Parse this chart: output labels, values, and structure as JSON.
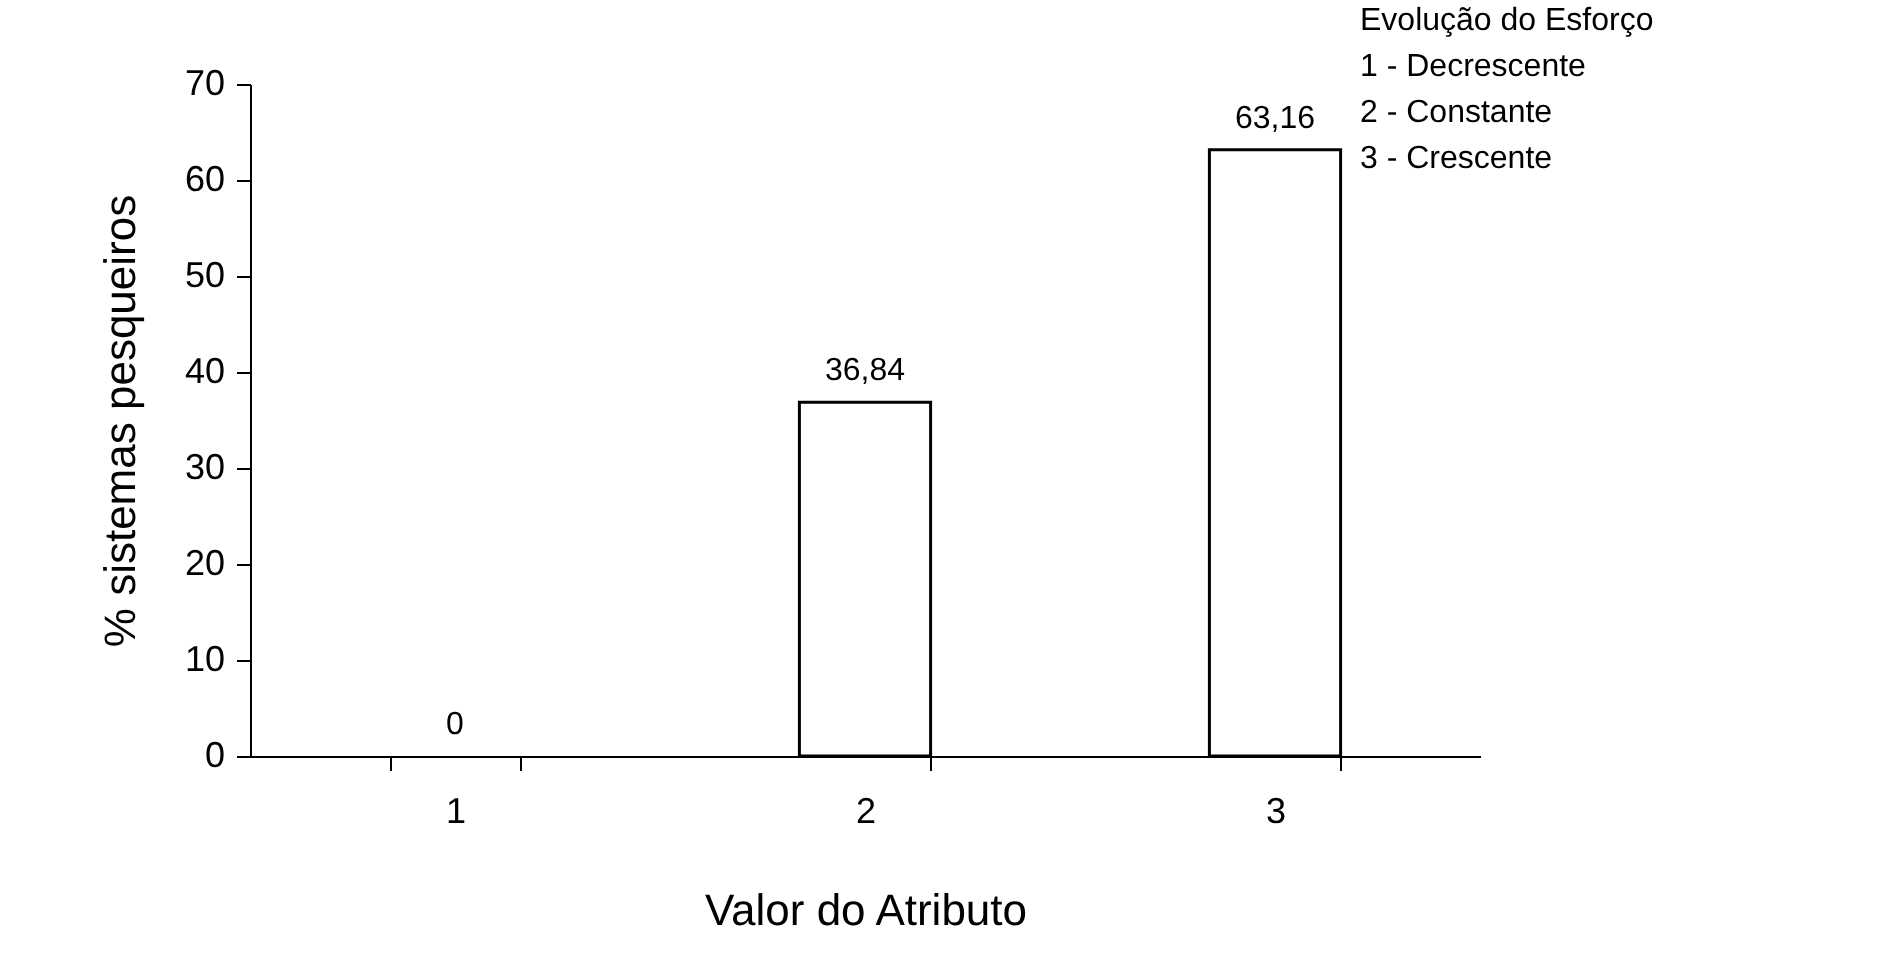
{
  "chart_data": {
    "type": "bar",
    "xlabel": "Valor do Atributo",
    "ylabel": "% sistemas pesqueiros",
    "categories": [
      "1",
      "2",
      "3"
    ],
    "values": [
      0,
      36.84,
      63.16
    ],
    "value_labels": [
      "0",
      "36,84",
      "63,16"
    ],
    "color": "#ffffff",
    "ylim": [
      0,
      70
    ],
    "yticks": [
      0,
      10,
      20,
      30,
      40,
      50,
      60,
      70
    ],
    "grid": false,
    "annotations": [
      "Evolução do Esforço",
      "1 - Decrescente",
      "2 - Constante",
      "3 - Crescente"
    ]
  }
}
